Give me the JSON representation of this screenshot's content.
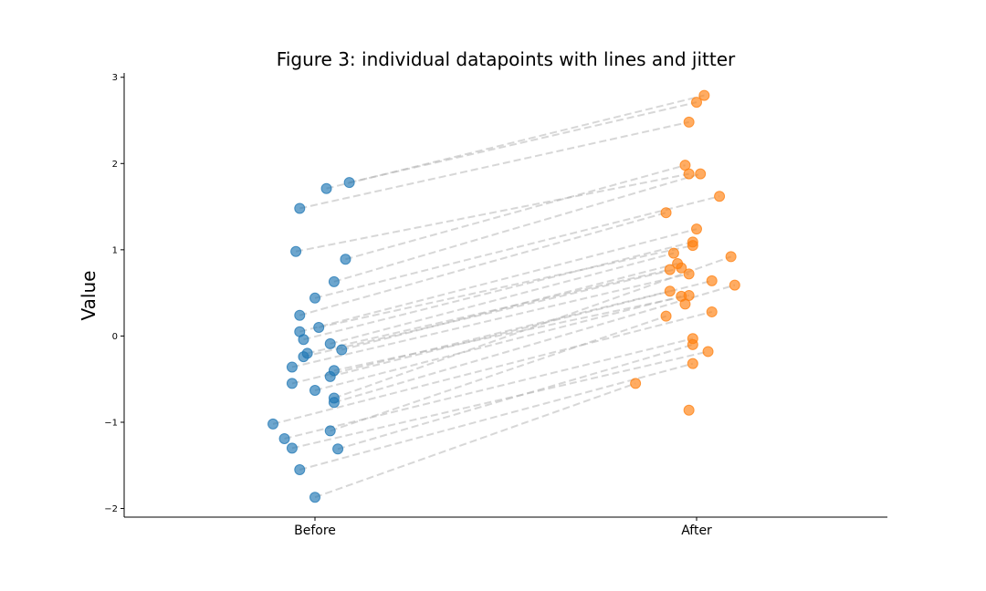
{
  "chart_data": {
    "type": "scatter",
    "title": "Figure 3: individual datapoints with lines and jitter",
    "xlabel": "",
    "ylabel": "Value",
    "categories": [
      "Before",
      "After"
    ],
    "ylim": [
      -2.1,
      3.05
    ],
    "yticks": [
      -2,
      -1,
      0,
      1,
      2,
      3
    ],
    "ytick_labels": [
      "−2",
      "−1",
      "0",
      "1",
      "2",
      "3"
    ],
    "grid": false,
    "legend": "none",
    "colors": {
      "before": "#1f77b4",
      "after": "#ff7f0e",
      "lines": "#b0b0b0"
    },
    "series": [
      {
        "x": [
          0.03,
          0.09,
          -0.04,
          -0.05,
          0.08,
          0.05,
          0.0,
          -0.04,
          -0.04,
          -0.03,
          0.01,
          0.04,
          0.07,
          -0.03,
          -0.02,
          -0.06,
          0.05,
          0.04,
          -0.06,
          0.0,
          0.05,
          0.05,
          0.04,
          -0.11,
          -0.08,
          0.06,
          -0.06,
          -0.04,
          0.0
        ],
        "values": [
          1.71,
          1.78,
          1.48,
          0.98,
          0.89,
          0.63,
          0.44,
          0.24,
          0.05,
          -0.04,
          0.1,
          -0.09,
          -0.16,
          -0.24,
          -0.2,
          -0.36,
          -0.4,
          -0.47,
          -0.55,
          -0.63,
          -0.72,
          -0.77,
          -1.1,
          -1.02,
          -1.19,
          -1.31,
          -1.3,
          -1.55,
          -1.87
        ]
      },
      {
        "x": [
          1.02,
          1.0,
          0.98,
          0.98,
          0.97,
          1.01,
          1.06,
          0.92,
          1.0,
          0.99,
          0.99,
          0.94,
          0.95,
          0.96,
          0.93,
          0.98,
          0.98,
          1.04,
          0.93,
          0.96,
          1.09,
          1.1,
          0.92,
          1.04,
          0.99,
          0.99,
          1.03,
          0.99,
          0.84
        ],
        "values": [
          2.79,
          2.71,
          2.48,
          1.88,
          1.98,
          1.88,
          1.62,
          1.43,
          1.24,
          1.09,
          1.05,
          0.96,
          0.84,
          0.79,
          0.77,
          0.72,
          0.47,
          0.64,
          0.52,
          0.46,
          0.92,
          0.59,
          0.23,
          0.28,
          -0.03,
          -0.1,
          -0.18,
          -0.32,
          -0.55
        ]
      }
    ],
    "extra_after": [
      {
        "x": 0.98,
        "value": -0.86
      },
      {
        "x": 0.97,
        "value": 0.37
      }
    ]
  }
}
